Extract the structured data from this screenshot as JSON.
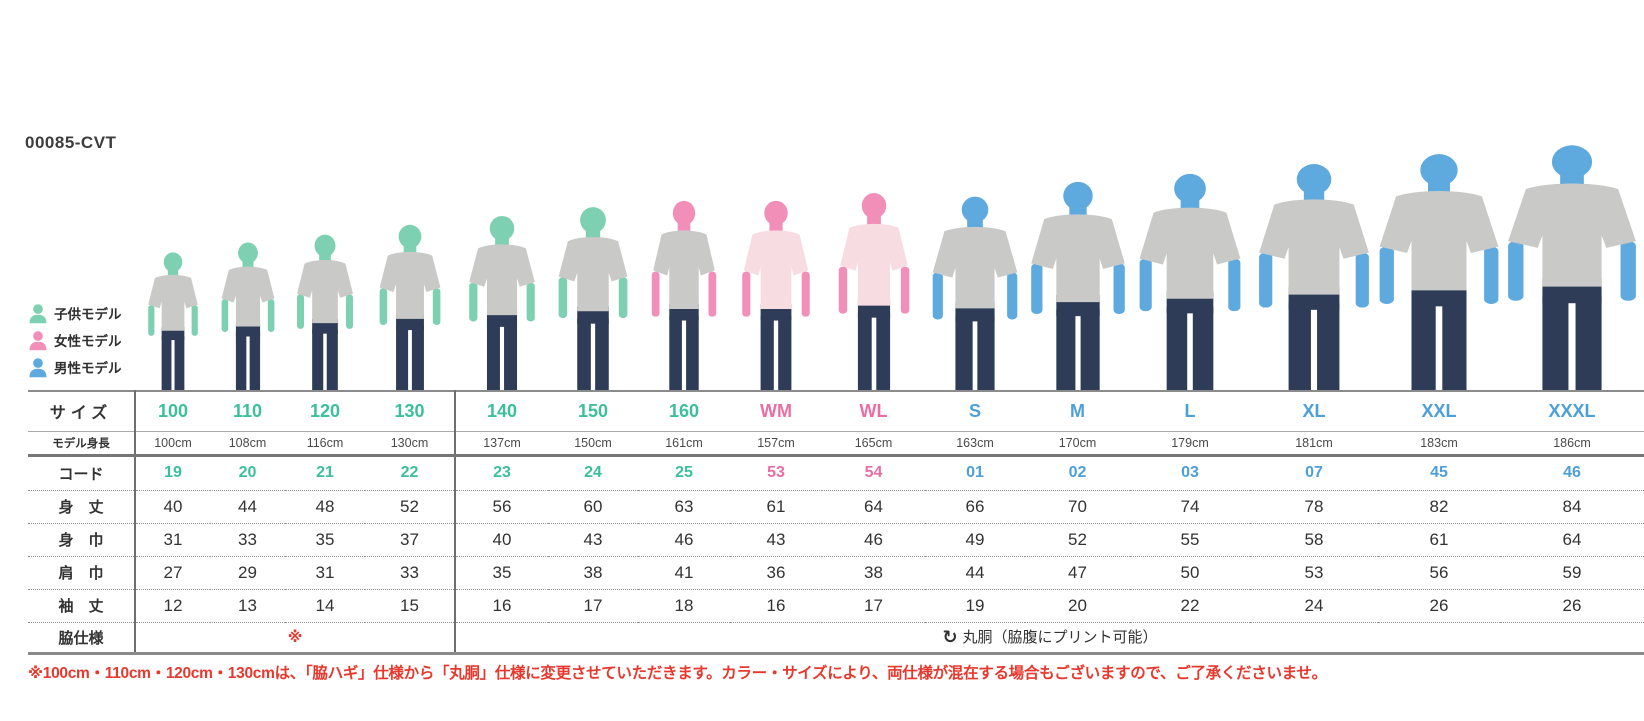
{
  "product_code": "00085-CVT",
  "colors": {
    "kids_green": "#3bbf9c",
    "women_pink": "#ea6da4",
    "men_blue": "#4d9fd8",
    "model_child": "#7ed0b2",
    "model_female": "#f18fb8",
    "model_male": "#5ea9de",
    "shirt_gray": "#c9c9c8",
    "shirt_pink": "#f7dce2",
    "pants_navy": "#2e3c57",
    "note_red": "#e8382d"
  },
  "legend": [
    {
      "label": "子供モデル",
      "type": "child"
    },
    {
      "label": "女性モデル",
      "type": "female"
    },
    {
      "label": "男性モデル",
      "type": "male"
    }
  ],
  "row_headers": {
    "size": "サイズ",
    "model_height": "モデル身長",
    "code": "コード",
    "body_length": "身　丈",
    "body_width": "身　巾",
    "shoulder_width": "肩　巾",
    "sleeve_length": "袖　丈",
    "side_spec": "脇仕様"
  },
  "columns": [
    {
      "size": "100",
      "group": "kids",
      "model": "child",
      "shirt": "gray",
      "model_height": "100cm",
      "code": "19",
      "body_length": "40",
      "body_width": "31",
      "shoulder_width": "27",
      "sleeve_length": "12"
    },
    {
      "size": "110",
      "group": "kids",
      "model": "child",
      "shirt": "gray",
      "model_height": "108cm",
      "code": "20",
      "body_length": "44",
      "body_width": "33",
      "shoulder_width": "29",
      "sleeve_length": "13"
    },
    {
      "size": "120",
      "group": "kids",
      "model": "child",
      "shirt": "gray",
      "model_height": "116cm",
      "code": "21",
      "body_length": "48",
      "body_width": "35",
      "shoulder_width": "31",
      "sleeve_length": "14"
    },
    {
      "size": "130",
      "group": "kids",
      "model": "child",
      "shirt": "gray",
      "model_height": "130cm",
      "code": "22",
      "body_length": "52",
      "body_width": "37",
      "shoulder_width": "33",
      "sleeve_length": "15"
    },
    {
      "size": "140",
      "group": "kids",
      "model": "child",
      "shirt": "gray",
      "model_height": "137cm",
      "code": "23",
      "body_length": "56",
      "body_width": "40",
      "shoulder_width": "35",
      "sleeve_length": "16"
    },
    {
      "size": "150",
      "group": "kids",
      "model": "child",
      "shirt": "gray",
      "model_height": "150cm",
      "code": "24",
      "body_length": "60",
      "body_width": "43",
      "shoulder_width": "38",
      "sleeve_length": "17"
    },
    {
      "size": "160",
      "group": "kids",
      "model": "female",
      "shirt": "gray",
      "model_height": "161cm",
      "code": "25",
      "body_length": "63",
      "body_width": "46",
      "shoulder_width": "41",
      "sleeve_length": "18"
    },
    {
      "size": "WM",
      "group": "women",
      "model": "female",
      "shirt": "pink",
      "model_height": "157cm",
      "code": "53",
      "body_length": "61",
      "body_width": "43",
      "shoulder_width": "36",
      "sleeve_length": "16"
    },
    {
      "size": "WL",
      "group": "women",
      "model": "female",
      "shirt": "pink",
      "model_height": "165cm",
      "code": "54",
      "body_length": "64",
      "body_width": "46",
      "shoulder_width": "38",
      "sleeve_length": "17"
    },
    {
      "size": "S",
      "group": "men",
      "model": "male",
      "shirt": "gray",
      "model_height": "163cm",
      "code": "01",
      "body_length": "66",
      "body_width": "49",
      "shoulder_width": "44",
      "sleeve_length": "19"
    },
    {
      "size": "M",
      "group": "men",
      "model": "male",
      "shirt": "gray",
      "model_height": "170cm",
      "code": "02",
      "body_length": "70",
      "body_width": "52",
      "shoulder_width": "47",
      "sleeve_length": "20"
    },
    {
      "size": "L",
      "group": "men",
      "model": "male",
      "shirt": "gray",
      "model_height": "179cm",
      "code": "03",
      "body_length": "74",
      "body_width": "55",
      "shoulder_width": "50",
      "sleeve_length": "22"
    },
    {
      "size": "XL",
      "group": "men",
      "model": "male",
      "shirt": "gray",
      "model_height": "181cm",
      "code": "07",
      "body_length": "78",
      "body_width": "58",
      "shoulder_width": "53",
      "sleeve_length": "24"
    },
    {
      "size": "XXL",
      "group": "men",
      "model": "male",
      "shirt": "gray",
      "model_height": "183cm",
      "code": "45",
      "body_length": "82",
      "body_width": "61",
      "shoulder_width": "56",
      "sleeve_length": "26"
    },
    {
      "size": "XXXL",
      "group": "men",
      "model": "male",
      "shirt": "gray",
      "model_height": "186cm",
      "code": "46",
      "body_length": "84",
      "body_width": "64",
      "shoulder_width": "59",
      "sleeve_length": "26"
    }
  ],
  "side_spec": {
    "left_note": "※",
    "right_icon": "↻",
    "right_text": "丸胴（脇腹にプリント可能）"
  },
  "footnote": "※100cm・110cm・120cm・130cmは、「脇ハギ」仕様から「丸胴」仕様に変更させていただきます。カラー・サイズにより、両仕様が混在する場合もございますので、ご了承くださいませ。"
}
